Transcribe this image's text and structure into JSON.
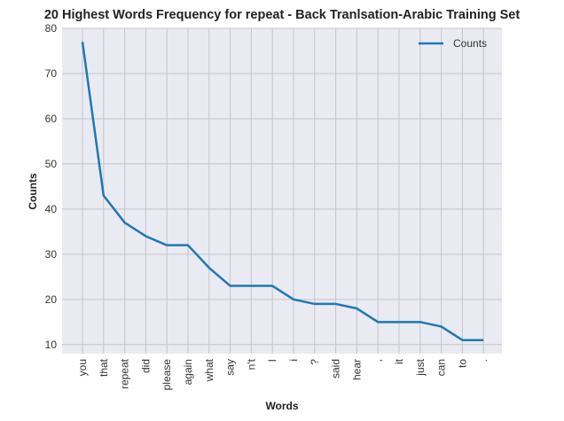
{
  "chart_data": {
    "type": "line",
    "title": "20 Highest Words Frequency for repeat - Back Tranlsation-Arabic Training Set",
    "xlabel": "Words",
    "ylabel": "Counts",
    "categories": [
      "you",
      "that",
      "repeat",
      "did",
      "please",
      "again",
      "what",
      "say",
      "n't",
      "I",
      "i",
      "?",
      "said",
      "hear",
      ",",
      "it",
      "just",
      "can",
      "to",
      "."
    ],
    "series": [
      {
        "name": "Counts",
        "color": "#1f77b4",
        "values": [
          77,
          43,
          37,
          34,
          32,
          32,
          27,
          23,
          23,
          23,
          20,
          19,
          19,
          18,
          15,
          15,
          15,
          14,
          11,
          11
        ]
      }
    ],
    "ylim": [
      8,
      80
    ],
    "yticks": [
      10,
      20,
      30,
      40,
      50,
      60,
      70,
      80
    ],
    "grid": true,
    "legend": "top-right"
  }
}
